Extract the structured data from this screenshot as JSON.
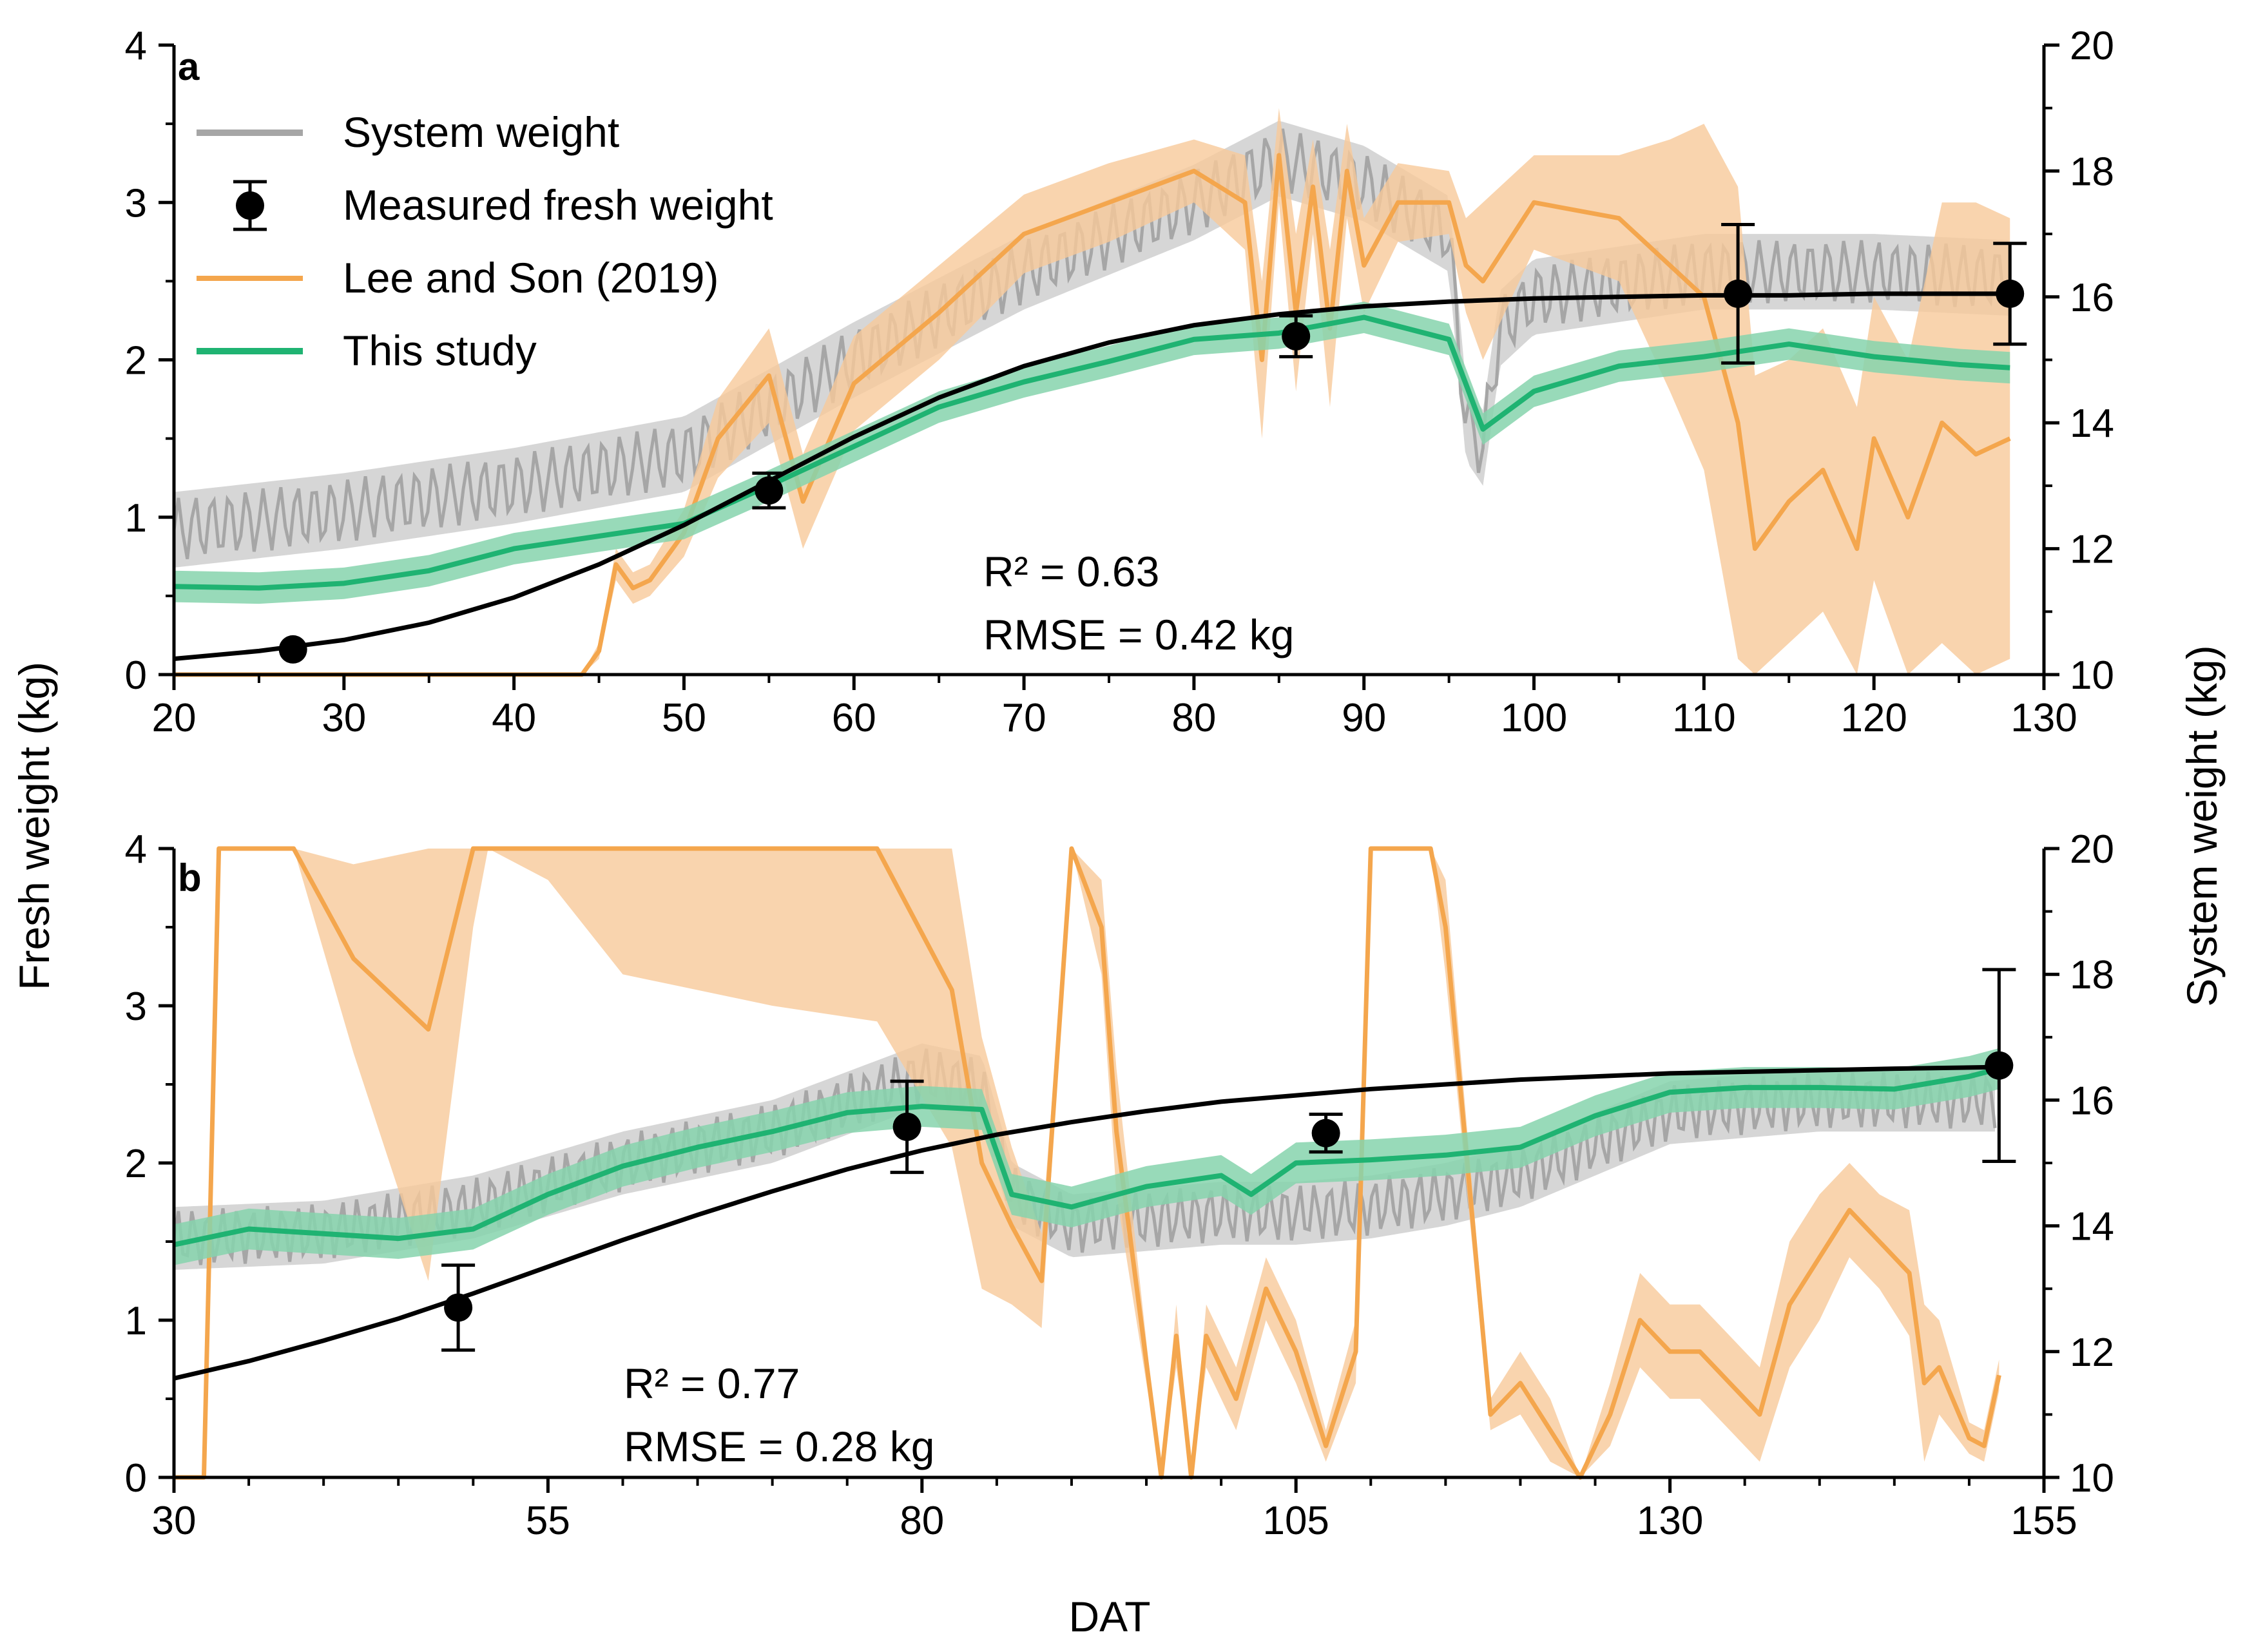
{
  "figure": {
    "y_left_label": "Fresh weight (kg)",
    "y_right_label": "System weight (kg)",
    "x_label": "DAT",
    "colors": {
      "system": "#a6a6a6",
      "system_band": "#d2d2d2",
      "lee": "#f4a64d",
      "lee_band": "#f8c99a",
      "study": "#1fb372",
      "study_band": "#86d3ad",
      "fit": "#000000",
      "measured": "#000000"
    }
  },
  "legend": {
    "system_weight": "System weight",
    "measured_fresh_weight": "Measured fresh weight",
    "lee_and_son": "Lee and Son (2019)",
    "this_study": "This study"
  },
  "chart_data": [
    {
      "type": "line",
      "panel": "a",
      "panel_label": "a",
      "xlim": [
        20,
        130
      ],
      "xticks": [
        20,
        30,
        40,
        50,
        60,
        70,
        80,
        90,
        100,
        110,
        120,
        130
      ],
      "ylim_left": [
        0,
        4
      ],
      "yticks_left": [
        0,
        1,
        2,
        3,
        4
      ],
      "ylim_right": [
        10,
        20
      ],
      "yticks_right": [
        10,
        12,
        14,
        16,
        18,
        20
      ],
      "stats": {
        "r2": "R² = 0.63",
        "rmse": "RMSE = 0.42 kg"
      },
      "measured": [
        {
          "x": 27,
          "y": 0.16,
          "err": 0.0
        },
        {
          "x": 55,
          "y": 1.17,
          "err": 0.11
        },
        {
          "x": 86,
          "y": 2.15,
          "err": 0.13
        },
        {
          "x": 112,
          "y": 2.42,
          "err": 0.44
        },
        {
          "x": 128,
          "y": 2.42,
          "err": 0.32
        }
      ],
      "fit": {
        "x": [
          20,
          25,
          30,
          35,
          40,
          45,
          50,
          55,
          60,
          65,
          70,
          75,
          80,
          85,
          90,
          95,
          100,
          105,
          110,
          115,
          120,
          125,
          128
        ],
        "y": [
          0.1,
          0.15,
          0.22,
          0.33,
          0.49,
          0.7,
          0.95,
          1.23,
          1.51,
          1.76,
          1.96,
          2.11,
          2.22,
          2.29,
          2.34,
          2.37,
          2.39,
          2.4,
          2.41,
          2.41,
          2.42,
          2.42,
          2.42
        ]
      },
      "this_study": {
        "x": [
          20,
          25,
          30,
          35,
          40,
          45,
          50,
          55,
          60,
          65,
          70,
          75,
          80,
          85,
          90,
          95,
          97,
          100,
          105,
          110,
          115,
          120,
          125,
          128
        ],
        "y": [
          0.56,
          0.55,
          0.58,
          0.66,
          0.8,
          0.88,
          0.96,
          1.2,
          1.45,
          1.7,
          1.86,
          1.99,
          2.13,
          2.17,
          2.27,
          2.13,
          1.56,
          1.8,
          1.96,
          2.02,
          2.1,
          2.02,
          1.97,
          1.95
        ],
        "band": 0.1
      },
      "lee_and_son": {
        "x": [
          20,
          30,
          44,
          45,
          46,
          47,
          48,
          50,
          52,
          55,
          57,
          60,
          65,
          70,
          75,
          80,
          83,
          84,
          85,
          86,
          87,
          88,
          89,
          90,
          92,
          95,
          96,
          97,
          100,
          105,
          108,
          110,
          112,
          113,
          115,
          117,
          119,
          120,
          122,
          124,
          126,
          128
        ],
        "y": [
          0,
          0,
          0,
          0.15,
          0.7,
          0.55,
          0.6,
          0.9,
          1.5,
          1.9,
          1.1,
          1.85,
          2.3,
          2.8,
          3.0,
          3.2,
          3.0,
          2.0,
          3.3,
          2.3,
          3.1,
          2.2,
          3.2,
          2.6,
          3.0,
          3.0,
          2.6,
          2.5,
          3.0,
          2.9,
          2.6,
          2.4,
          1.6,
          0.8,
          1.1,
          1.3,
          0.8,
          1.5,
          1.0,
          1.6,
          1.4,
          1.5
        ],
        "band": [
          0,
          0,
          0,
          0.05,
          0.1,
          0.1,
          0.1,
          0.15,
          0.25,
          0.3,
          0.3,
          0.3,
          0.3,
          0.25,
          0.25,
          0.2,
          0.3,
          0.5,
          0.3,
          0.5,
          0.3,
          0.5,
          0.3,
          0.3,
          0.25,
          0.2,
          0.3,
          0.5,
          0.3,
          0.4,
          0.8,
          1.1,
          1.5,
          1.1,
          0.9,
          0.9,
          0.9,
          0.9,
          1.0,
          1.4,
          1.6,
          1.4
        ]
      },
      "system_weight": {
        "x": [
          20,
          30,
          40,
          50,
          60,
          70,
          80,
          85,
          90,
          95,
          96,
          97,
          98,
          100,
          110,
          120,
          128
        ],
        "y": [
          12.3,
          12.6,
          13.0,
          13.5,
          15.0,
          16.4,
          17.5,
          18.2,
          17.8,
          17.0,
          14.0,
          13.6,
          15.5,
          16.0,
          16.4,
          16.4,
          16.3
        ],
        "amplitude": 0.5,
        "band": 0.6
      }
    },
    {
      "type": "line",
      "panel": "b",
      "panel_label": "b",
      "xlim": [
        30,
        155
      ],
      "xticks": [
        30,
        55,
        80,
        105,
        130,
        155
      ],
      "ylim_left": [
        0,
        4
      ],
      "yticks_left": [
        0,
        1,
        2,
        3,
        4
      ],
      "ylim_right": [
        10,
        20
      ],
      "yticks_right": [
        10,
        12,
        14,
        16,
        18,
        20
      ],
      "stats": {
        "r2": "R² = 0.77",
        "rmse": "RMSE = 0.28 kg"
      },
      "measured": [
        {
          "x": 49,
          "y": 1.08,
          "err": 0.27
        },
        {
          "x": 79,
          "y": 2.23,
          "err": 0.29
        },
        {
          "x": 107,
          "y": 2.19,
          "err": 0.12
        },
        {
          "x": 152,
          "y": 2.62,
          "err": 0.61
        }
      ],
      "fit": {
        "x": [
          30,
          35,
          40,
          45,
          50,
          55,
          60,
          65,
          70,
          75,
          80,
          85,
          90,
          95,
          100,
          105,
          110,
          115,
          120,
          125,
          130,
          135,
          140,
          145,
          152
        ],
        "y": [
          0.63,
          0.74,
          0.87,
          1.01,
          1.17,
          1.34,
          1.51,
          1.67,
          1.82,
          1.96,
          2.08,
          2.18,
          2.26,
          2.33,
          2.39,
          2.43,
          2.47,
          2.5,
          2.53,
          2.55,
          2.57,
          2.58,
          2.59,
          2.6,
          2.61
        ]
      },
      "this_study": {
        "x": [
          30,
          35,
          40,
          45,
          50,
          55,
          60,
          65,
          70,
          75,
          80,
          84,
          86,
          90,
          95,
          100,
          102,
          105,
          110,
          115,
          120,
          125,
          130,
          135,
          140,
          145,
          150,
          152
        ],
        "y": [
          1.48,
          1.58,
          1.55,
          1.52,
          1.58,
          1.8,
          1.98,
          2.1,
          2.2,
          2.32,
          2.36,
          2.34,
          1.8,
          1.72,
          1.85,
          1.92,
          1.8,
          2.0,
          2.02,
          2.05,
          2.1,
          2.3,
          2.45,
          2.48,
          2.48,
          2.47,
          2.55,
          2.6
        ],
        "band": 0.13
      },
      "lee_and_son": {
        "x": [
          30,
          32,
          33,
          34,
          38,
          42,
          47,
          50,
          51,
          55,
          60,
          70,
          77,
          82,
          84,
          86,
          88,
          90,
          92,
          93,
          96,
          97,
          98,
          99,
          101,
          103,
          105,
          107,
          109,
          110,
          113,
          114,
          115,
          118,
          120,
          122,
          124,
          126,
          128,
          130,
          132,
          134,
          136,
          138,
          140,
          142,
          144,
          146,
          147,
          148,
          150,
          151,
          152
        ],
        "y": [
          0,
          0,
          4,
          4,
          4,
          3.3,
          2.85,
          4,
          4,
          4,
          4,
          4,
          4,
          3.1,
          2.0,
          1.6,
          1.25,
          4,
          3.5,
          2.2,
          0,
          0.9,
          0,
          0.9,
          0.5,
          1.2,
          0.8,
          0.2,
          0.8,
          4,
          4,
          4,
          3.5,
          0.4,
          0.6,
          0.3,
          0,
          0.4,
          1.0,
          0.8,
          0.8,
          0.6,
          0.4,
          1.1,
          1.4,
          1.7,
          1.5,
          1.3,
          0.6,
          0.7,
          0.25,
          0.2,
          0.65
        ],
        "band": [
          0,
          0,
          0,
          0,
          0,
          0.6,
          1.6,
          0.5,
          0,
          0.2,
          0.8,
          1.0,
          1.1,
          1.0,
          0.8,
          0.5,
          0.3,
          0,
          0.3,
          0.4,
          0,
          0.2,
          0,
          0.2,
          0.2,
          0.2,
          0.2,
          0.1,
          0.2,
          0,
          0,
          0,
          0.3,
          0.1,
          0.2,
          0.2,
          0,
          0.2,
          0.3,
          0.3,
          0.3,
          0.3,
          0.3,
          0.4,
          0.4,
          0.3,
          0.3,
          0.4,
          0.5,
          0.3,
          0.1,
          0.1,
          0.1
        ]
      },
      "system_weight": {
        "x": [
          30,
          40,
          50,
          60,
          70,
          80,
          84,
          86,
          90,
          95,
          100,
          105,
          110,
          115,
          120,
          125,
          130,
          135,
          140,
          145,
          152
        ],
        "y": [
          13.8,
          13.9,
          14.3,
          15.0,
          15.5,
          16.4,
          16.2,
          14.5,
          14.0,
          14.1,
          14.2,
          14.2,
          14.3,
          14.5,
          14.8,
          15.3,
          15.8,
          15.9,
          16.0,
          16.0,
          16.0
        ],
        "amplitude": 0.45,
        "band": 0.5
      }
    }
  ]
}
